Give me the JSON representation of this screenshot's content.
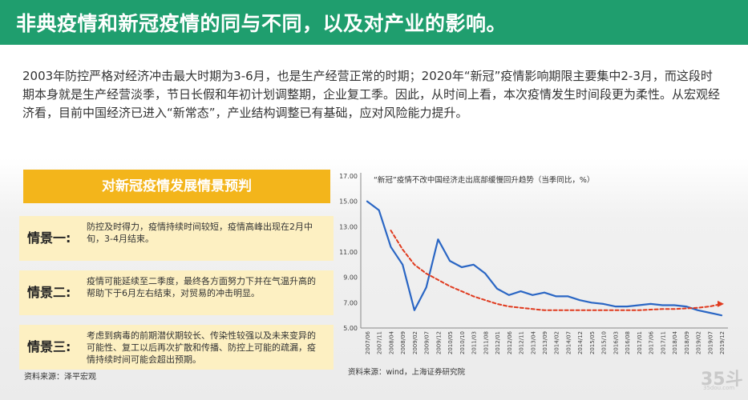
{
  "header": {
    "title": "非典疫情和新冠疫情的同与不同，以及对产业的影响。"
  },
  "intro": {
    "text": "2003年防控严格对经济冲击最大时期为3-6月，也是生产经营正常的时期；2020年“新冠”疫情影响期限主要集中2-3月，而这段时期本身就是生产经营淡季，节日长假和年初计划调整期，企业复工季。因此，从时间上看，本次疫情发生时间段更为柔性。从宏观经济看，目前中国经济已进入“新常态”，产业结构调整已有基础，应对风险能力提升。"
  },
  "scenarios": {
    "header": "对新冠疫情发展情景预判",
    "items": [
      {
        "label": "情景一:",
        "text": "防控及时得力，疫情持续时间较短，疫情高峰出现在2月中旬，3-4月结束。"
      },
      {
        "label": "情景二:",
        "text": "疫情可能延续至二季度，最终各方面努力下并在气温升高的帮助下于6月左右结束，对贸易的冲击明显。"
      },
      {
        "label": "情景三:",
        "text": "考虑到病毒的前期潜伏期较长、传染性较强以及未来变异的可能性、复工以后再次扩散和传播、防控上可能的疏漏，疫情持续时间可能会超出预期。"
      }
    ],
    "source": "资料来源：泽平宏观"
  },
  "chart_data": {
    "type": "line",
    "title": "“新冠”疫情不改中国经济走出底部缓慢回升趋势（当季同比，%）",
    "xlabel": "",
    "ylabel": "",
    "ylim": [
      5.0,
      17.0
    ],
    "yticks": [
      "17.00",
      "15.00",
      "13.00",
      "11.00",
      "9.00",
      "7.00",
      "5.00"
    ],
    "x": [
      "2007/06",
      "2007/11",
      "2008/04",
      "2008/09",
      "2009/02",
      "2009/07",
      "2009/12",
      "2010/05",
      "2010/10",
      "2011/03",
      "2011/08",
      "2012/01",
      "2012/06",
      "2012/11",
      "2013/04",
      "2013/09",
      "2014/02",
      "2014/07",
      "2014/12",
      "2015/05",
      "2015/10",
      "2016/03",
      "2016/08",
      "2017/01",
      "2017/06",
      "2017/11",
      "2018/04",
      "2018/09",
      "2019/02",
      "2019/07",
      "2019/12"
    ],
    "grid": false,
    "series": [
      {
        "style": "solid",
        "color": "#2a66c4",
        "values": [
          15.0,
          14.3,
          11.4,
          10.0,
          6.4,
          8.2,
          12.0,
          10.3,
          9.8,
          10.0,
          9.3,
          8.1,
          7.6,
          7.9,
          7.6,
          7.8,
          7.5,
          7.5,
          7.2,
          7.0,
          6.9,
          6.7,
          6.7,
          6.8,
          6.9,
          6.8,
          6.8,
          6.7,
          6.4,
          6.2,
          6.0
        ]
      },
      {
        "style": "dashed",
        "color": "#e03a1e",
        "values": [
          null,
          null,
          12.7,
          11.2,
          10.0,
          9.3,
          8.8,
          8.3,
          7.9,
          7.5,
          7.2,
          6.9,
          6.7,
          6.6,
          6.5,
          6.4,
          6.4,
          6.4,
          6.4,
          6.4,
          6.4,
          6.4,
          6.4,
          6.4,
          6.45,
          6.5,
          6.5,
          6.55,
          6.6,
          6.7,
          6.9
        ]
      }
    ],
    "source": "资料来源：wind，上海证券研究院"
  },
  "logo": {
    "text": "35斗",
    "sub": "35dou.com"
  }
}
